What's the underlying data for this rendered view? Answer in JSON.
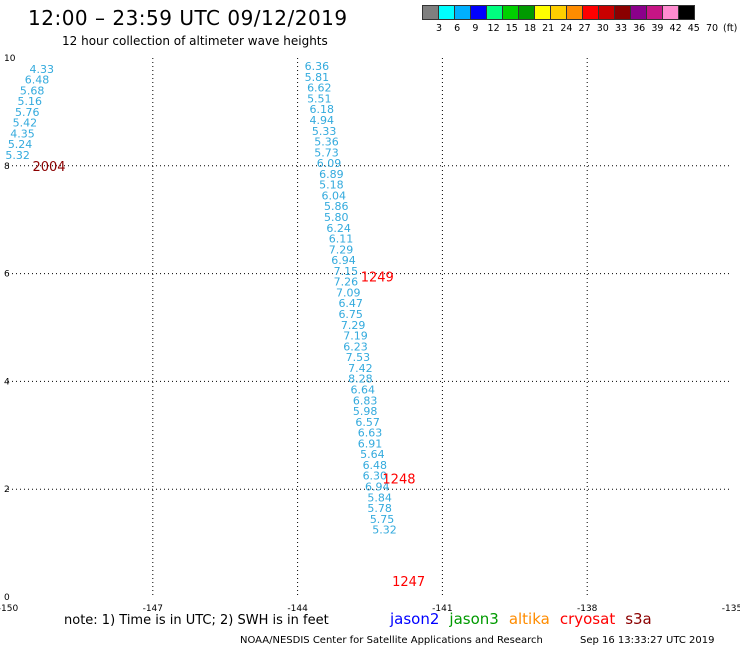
{
  "header": {
    "title": "12:00 – 23:59 UTC 09/12/2019",
    "subtitle": "12 hour collection of altimeter wave heights"
  },
  "colorbar": {
    "colors": [
      "#7f7f7f",
      "#00ffff",
      "#00b0ff",
      "#0000ff",
      "#00ff7f",
      "#00d000",
      "#009a00",
      "#ffff00",
      "#ffcf00",
      "#ff8c00",
      "#ff0000",
      "#c80000",
      "#8b0000",
      "#8b008b",
      "#c71585",
      "#ff8cd0",
      "#000000"
    ],
    "labels": [
      "3",
      "6",
      "9",
      "12",
      "15",
      "18",
      "21",
      "24",
      "27",
      "30",
      "33",
      "36",
      "39",
      "42",
      "45",
      "70",
      "(ft)"
    ]
  },
  "chart_data": {
    "type": "scatter",
    "xlim": [
      -150,
      -135
    ],
    "ylim": [
      0,
      10
    ],
    "x_ticks": [
      "-150",
      "-147",
      "-144",
      "-141",
      "-138",
      "-135"
    ],
    "y_ticks": [
      "0",
      "2",
      "4",
      "6",
      "8",
      "10"
    ],
    "grid": true,
    "point_color": "#33aadd",
    "series": [
      {
        "points": [
          {
            "x": -149.3,
            "y": 9.8,
            "label": "4.33"
          },
          {
            "x": -149.4,
            "y": 9.6,
            "label": "6.48"
          },
          {
            "x": -149.5,
            "y": 9.4,
            "label": "5.68"
          },
          {
            "x": -149.55,
            "y": 9.2,
            "label": "5.16"
          },
          {
            "x": -149.6,
            "y": 9.0,
            "label": "5.76"
          },
          {
            "x": -149.65,
            "y": 8.8,
            "label": "5.42"
          },
          {
            "x": -149.7,
            "y": 8.6,
            "label": "4.35"
          },
          {
            "x": -149.75,
            "y": 8.4,
            "label": "5.24"
          },
          {
            "x": -149.8,
            "y": 8.2,
            "label": "5.32"
          },
          {
            "x": -143.6,
            "y": 9.85,
            "label": "6.36"
          },
          {
            "x": -143.6,
            "y": 9.65,
            "label": "5.81"
          },
          {
            "x": -143.55,
            "y": 9.45,
            "label": "6.62"
          },
          {
            "x": -143.55,
            "y": 9.25,
            "label": "5.51"
          },
          {
            "x": -143.5,
            "y": 9.05,
            "label": "6.18"
          },
          {
            "x": -143.5,
            "y": 8.85,
            "label": "4.94"
          },
          {
            "x": -143.45,
            "y": 8.65,
            "label": "5.33"
          },
          {
            "x": -143.4,
            "y": 8.45,
            "label": "5.36"
          },
          {
            "x": -143.4,
            "y": 8.25,
            "label": "5.73"
          },
          {
            "x": -143.35,
            "y": 8.05,
            "label": "6.09"
          },
          {
            "x": -143.3,
            "y": 7.85,
            "label": "6.89"
          },
          {
            "x": -143.3,
            "y": 7.65,
            "label": "5.18"
          },
          {
            "x": -143.25,
            "y": 7.45,
            "label": "6.04"
          },
          {
            "x": -143.2,
            "y": 7.25,
            "label": "5.86"
          },
          {
            "x": -143.2,
            "y": 7.05,
            "label": "5.80"
          },
          {
            "x": -143.15,
            "y": 6.85,
            "label": "6.24"
          },
          {
            "x": -143.1,
            "y": 6.65,
            "label": "6.11"
          },
          {
            "x": -143.1,
            "y": 6.45,
            "label": "7.29"
          },
          {
            "x": -143.05,
            "y": 6.25,
            "label": "6.94"
          },
          {
            "x": -143.0,
            "y": 6.05,
            "label": "7.15"
          },
          {
            "x": -143.0,
            "y": 5.85,
            "label": "7.26"
          },
          {
            "x": -142.95,
            "y": 5.65,
            "label": "7.09"
          },
          {
            "x": -142.9,
            "y": 5.45,
            "label": "6.47"
          },
          {
            "x": -142.9,
            "y": 5.25,
            "label": "6.75"
          },
          {
            "x": -142.85,
            "y": 5.05,
            "label": "7.29"
          },
          {
            "x": -142.8,
            "y": 4.85,
            "label": "7.19"
          },
          {
            "x": -142.8,
            "y": 4.65,
            "label": "6.23"
          },
          {
            "x": -142.75,
            "y": 4.45,
            "label": "7.53"
          },
          {
            "x": -142.7,
            "y": 4.25,
            "label": "7.42"
          },
          {
            "x": -142.7,
            "y": 4.05,
            "label": "8.28"
          },
          {
            "x": -142.65,
            "y": 3.85,
            "label": "6.64"
          },
          {
            "x": -142.6,
            "y": 3.65,
            "label": "6.83"
          },
          {
            "x": -142.6,
            "y": 3.45,
            "label": "5.98"
          },
          {
            "x": -142.55,
            "y": 3.25,
            "label": "6.57"
          },
          {
            "x": -142.5,
            "y": 3.05,
            "label": "6.63"
          },
          {
            "x": -142.5,
            "y": 2.85,
            "label": "6.91"
          },
          {
            "x": -142.45,
            "y": 2.65,
            "label": "5.64"
          },
          {
            "x": -142.4,
            "y": 2.45,
            "label": "6.48"
          },
          {
            "x": -142.4,
            "y": 2.25,
            "label": "6.30"
          },
          {
            "x": -142.35,
            "y": 2.05,
            "label": "6.94"
          },
          {
            "x": -142.3,
            "y": 1.85,
            "label": "5.84"
          },
          {
            "x": -142.3,
            "y": 1.65,
            "label": "5.78"
          },
          {
            "x": -142.25,
            "y": 1.45,
            "label": "5.75"
          },
          {
            "x": -142.2,
            "y": 1.25,
            "label": "5.32"
          }
        ]
      }
    ],
    "annotations": [
      {
        "x": -149.15,
        "y": 8.0,
        "text": "2004",
        "color": "#8b0000"
      },
      {
        "x": -142.35,
        "y": 5.95,
        "text": "1249",
        "color": "#ff0000"
      },
      {
        "x": -141.9,
        "y": 2.2,
        "text": "1248",
        "color": "#ff0000"
      },
      {
        "x": -141.7,
        "y": 0.3,
        "text": "1247",
        "color": "#ff0000"
      }
    ]
  },
  "note": "note:  1) Time is in UTC;  2) SWH is in feet",
  "legend": [
    {
      "name": "jason2",
      "color": "#0000ff"
    },
    {
      "name": "jason3",
      "color": "#009a00"
    },
    {
      "name": "altika",
      "color": "#ff8c00"
    },
    {
      "name": "cryosat",
      "color": "#ff0000"
    },
    {
      "name": "s3a",
      "color": "#8b0000"
    }
  ],
  "footer": {
    "credit": "NOAA/NESDIS Center for Satellite Applications and Research",
    "timestamp": "Sep 16 13:33:27 UTC 2019"
  }
}
